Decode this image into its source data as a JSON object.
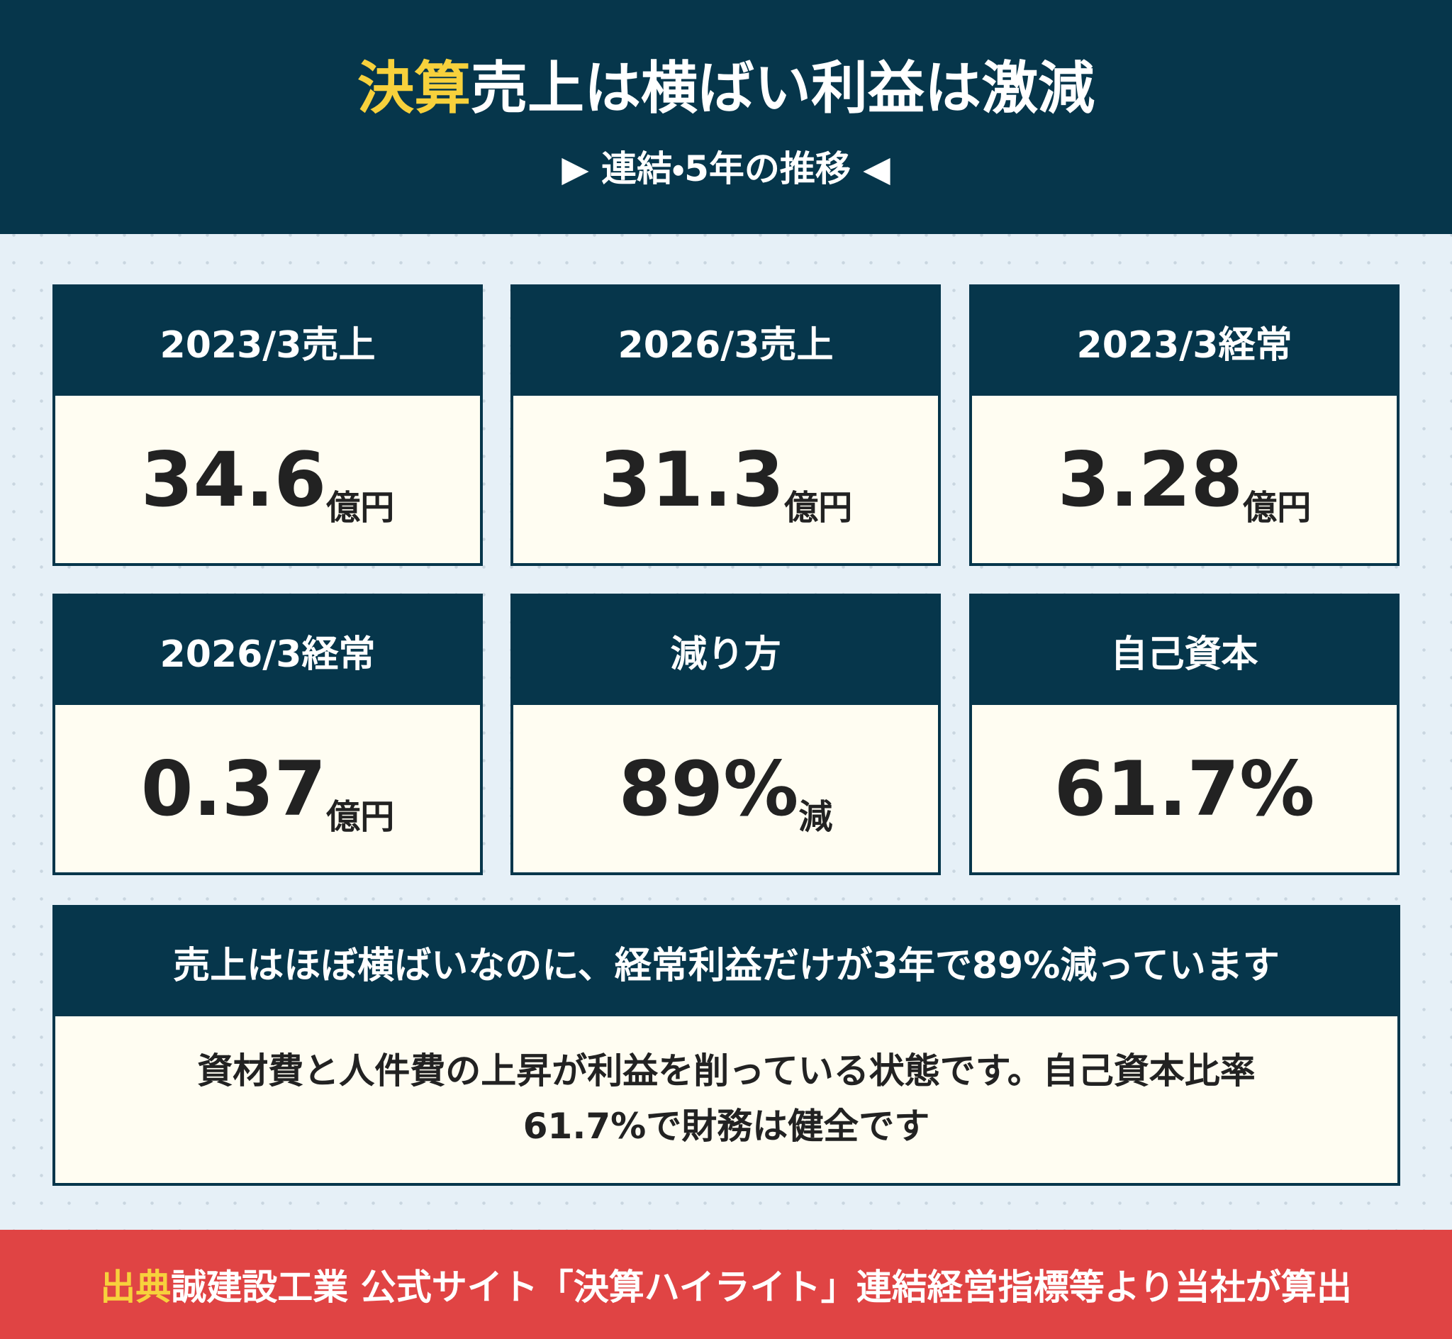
{
  "header": {
    "title_highlight": "決算",
    "title": "売上は横ばい利益は激減",
    "subtitle": "▶ 連結・5年の推移 ◀"
  },
  "cards": [
    {
      "label": "2023/3売上",
      "value": "34.6",
      "unit": "億円"
    },
    {
      "label": "2026/3売上",
      "value": "31.3",
      "unit": "億円"
    },
    {
      "label": "2023/3経常",
      "value": "3.28",
      "unit": "億円"
    },
    {
      "label": "2026/3経常",
      "value": "0.37",
      "unit": "億円"
    },
    {
      "label": "減り方",
      "value": "89%",
      "unit": "減"
    },
    {
      "label": "自己資本",
      "value": "61.7%"
    }
  ],
  "summary": {
    "heading": "売上はほぼ横ばいなのに、経常利益だけが3年で89%減っています",
    "body": [
      "資材費と人件費の上昇が利益を削っている状態です。自己資本比率",
      "61.7%で財務は健全です"
    ]
  },
  "footer": {
    "label": "出典",
    "text": "誠建設工業 公式サイト「決算ハイライト」連結経営指標等より当社が算出"
  }
}
